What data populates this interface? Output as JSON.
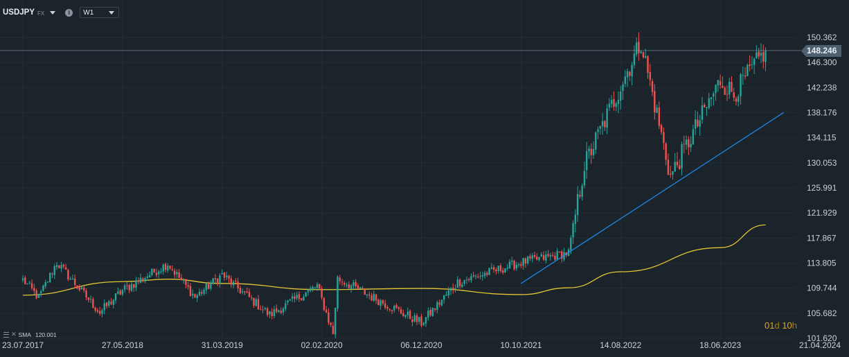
{
  "toolbar": {
    "symbol": "USDJPY",
    "market": "FX",
    "info_glyph": "i",
    "interval": "W1"
  },
  "indicator": {
    "label": "SMA",
    "value": "120.001",
    "color": "#e3c534"
  },
  "countdown": {
    "days": "01",
    "days_unit": "d",
    "hours": "10",
    "hours_unit": "h"
  },
  "current_price": "148.246",
  "colors": {
    "background": "#1b232b",
    "bull": "#26a69a",
    "bear": "#ef5350",
    "trendline": "#1e88e5",
    "sma": "#e3c534",
    "price_line": "#8fa3b8"
  },
  "chart_data": {
    "type": "candlestick",
    "title": "",
    "xlabel": "",
    "ylabel": "",
    "ylim": [
      101.62,
      152.4
    ],
    "y_ticks": [
      "150.362",
      "146.300",
      "142.238",
      "138.176",
      "134.115",
      "130.053",
      "125.991",
      "121.929",
      "117.867",
      "113.805",
      "109.744",
      "105.682",
      "101.620"
    ],
    "x_ticks": [
      "23.07.2017",
      "27.05.2018",
      "31.03.2019",
      "02.02.2020",
      "06.12.2020",
      "10.10.2021",
      "14.08.2022",
      "18.06.2023",
      "21.04.2024"
    ],
    "price_path": [
      {
        "date": "23.07.2017",
        "close": 111.1
      },
      {
        "date": "10.09.2017",
        "close": 108.2
      },
      {
        "date": "05.11.2017",
        "close": 113.9
      },
      {
        "date": "18.03.2018",
        "close": 105.8
      },
      {
        "date": "27.05.2018",
        "close": 109.4
      },
      {
        "date": "14.10.2018",
        "close": 113.7
      },
      {
        "date": "06.01.2019",
        "close": 108.3
      },
      {
        "date": "31.03.2019",
        "close": 111.9
      },
      {
        "date": "25.08.2019",
        "close": 105.4
      },
      {
        "date": "19.01.2020",
        "close": 110.1
      },
      {
        "date": "08.03.2020",
        "close": 102.4
      },
      {
        "date": "22.03.2020",
        "close": 111.3
      },
      {
        "date": "06.12.2020",
        "close": 104.1
      },
      {
        "date": "28.03.2021",
        "close": 110.7
      },
      {
        "date": "10.10.2021",
        "close": 113.9
      },
      {
        "date": "06.03.2022",
        "close": 115.5
      },
      {
        "date": "24.04.2022",
        "close": 129.7
      },
      {
        "date": "16.10.2022",
        "close": 149.7
      },
      {
        "date": "15.01.2023",
        "close": 127.8
      },
      {
        "date": "18.06.2023",
        "close": 143.4
      },
      {
        "date": "30.07.2023",
        "close": 141.2
      },
      {
        "date": "05.11.2023",
        "close": 148.25
      }
    ],
    "series": [
      {
        "name": "SMA 120",
        "type": "line",
        "points": [
          {
            "date": "23.07.2017",
            "value": 108.6
          },
          {
            "date": "27.05.2018",
            "value": 110.8
          },
          {
            "date": "14.10.2018",
            "value": 111.2
          },
          {
            "date": "31.03.2019",
            "value": 110.5
          },
          {
            "date": "02.02.2020",
            "value": 109.5
          },
          {
            "date": "06.12.2020",
            "value": 109.7
          },
          {
            "date": "10.10.2021",
            "value": 108.7
          },
          {
            "date": "06.03.2022",
            "value": 109.8
          },
          {
            "date": "14.08.2022",
            "value": 112.4
          },
          {
            "date": "18.06.2023",
            "value": 116.3
          },
          {
            "date": "05.11.2023",
            "value": 120.0
          }
        ]
      },
      {
        "name": "Trendline",
        "type": "line",
        "points": [
          {
            "date": "10.10.2021",
            "value": 110.5
          },
          {
            "date": "31.12.2023",
            "value": 138.2
          }
        ]
      }
    ],
    "current_price_line": 148.246,
    "grid": true,
    "legend": "none"
  }
}
